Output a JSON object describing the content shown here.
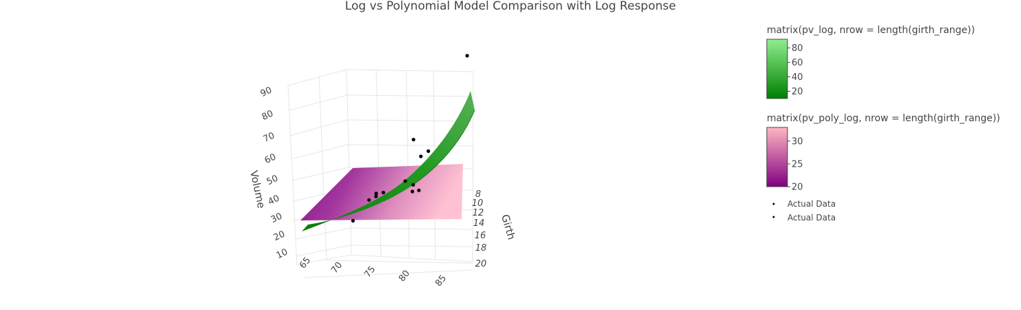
{
  "chart_data": {
    "type": "surface3d",
    "title": "Log vs Polynomial Model Comparison with Log Response",
    "axes": {
      "x": {
        "label": "",
        "ticks": [
          "65",
          "70",
          "75",
          "80",
          "85"
        ]
      },
      "y": {
        "label": "Girth",
        "ticks": [
          "8",
          "10",
          "12",
          "14",
          "16",
          "18",
          "20"
        ]
      },
      "z": {
        "label": "Volume",
        "ticks": [
          "10",
          "20",
          "30",
          "40",
          "50",
          "60",
          "70",
          "80",
          "90"
        ]
      }
    },
    "grid": true,
    "colorbars": [
      {
        "title": "matrix(pv_log, nrow = length(girth_range))",
        "ticks": [
          "20",
          "40",
          "60",
          "80"
        ],
        "range": [
          10,
          92
        ],
        "colors": [
          "#008000",
          "#90ee90"
        ]
      },
      {
        "title": "matrix(pv_poly_log, nrow = length(girth_range))",
        "ticks": [
          "20",
          "25",
          "30"
        ],
        "range": [
          20,
          33
        ],
        "colors": [
          "#800080",
          "#ffb6c1"
        ]
      }
    ],
    "surfaces": [
      {
        "name": "pv_log",
        "colorscale": [
          "#008000",
          "#90ee90"
        ]
      },
      {
        "name": "pv_poly_log",
        "colorscale": [
          "#800080",
          "#ffb6c1"
        ]
      }
    ],
    "legend": {
      "position": "right",
      "entries": [
        "Actual Data",
        "Actual Data"
      ]
    },
    "points": [
      {
        "height": 72,
        "girth": 8.3,
        "volume": 10.3
      },
      {
        "height": 81,
        "girth": 8.8,
        "volume": 18.2
      },
      {
        "height": 80,
        "girth": 11.0,
        "volume": 18.8
      },
      {
        "height": 75,
        "girth": 11.2,
        "volume": 19.9
      },
      {
        "height": 79,
        "girth": 11.3,
        "volume": 24.2
      },
      {
        "height": 76,
        "girth": 11.4,
        "volume": 21.0
      },
      {
        "height": 75,
        "girth": 11.7,
        "volume": 21.3
      },
      {
        "height": 74,
        "girth": 12.0,
        "volume": 19.1
      },
      {
        "height": 80,
        "girth": 12.9,
        "volume": 22.2
      },
      {
        "height": 80,
        "girth": 13.8,
        "volume": 42.6
      },
      {
        "height": 81,
        "girth": 14.0,
        "volume": 34.5
      },
      {
        "height": 82,
        "girth": 14.5,
        "volume": 36.3
      },
      {
        "height": 87,
        "girth": 20.6,
        "volume": 77.0
      }
    ]
  }
}
